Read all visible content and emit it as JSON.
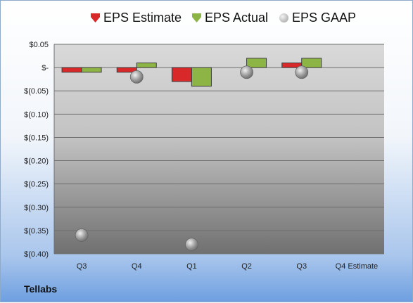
{
  "company": "Tellabs",
  "chart_data": {
    "type": "bar",
    "categories": [
      "Q3",
      "Q4",
      "Q1",
      "Q2",
      "Q3",
      "Q4 Estimate"
    ],
    "series": [
      {
        "name": "EPS Estimate",
        "kind": "bar",
        "color": "#d9282a",
        "values": [
          -0.01,
          -0.01,
          -0.03,
          null,
          0.01,
          null
        ]
      },
      {
        "name": "EPS Actual",
        "kind": "bar",
        "color": "#8db545",
        "values": [
          -0.01,
          0.01,
          -0.04,
          0.02,
          0.02,
          null
        ]
      },
      {
        "name": "EPS GAAP",
        "kind": "marker",
        "color": "#a8a8a8",
        "values": [
          -0.36,
          -0.02,
          -0.38,
          -0.01,
          -0.01,
          null
        ]
      }
    ],
    "y_ticks": [
      0.05,
      0,
      -0.05,
      -0.1,
      -0.15,
      -0.2,
      -0.25,
      -0.3,
      -0.35,
      -0.4
    ],
    "y_tick_labels": [
      "$0.05",
      "$-",
      "$(0.05)",
      "$(0.10)",
      "$(0.15)",
      "$(0.20)",
      "$(0.25)",
      "$(0.30)",
      "$(0.35)",
      "$(0.40)"
    ],
    "ylim": [
      -0.4,
      0.05
    ],
    "grid": true,
    "legend_position": "top"
  }
}
